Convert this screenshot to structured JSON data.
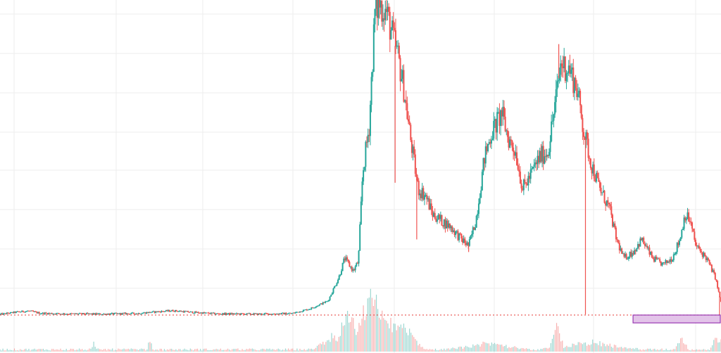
{
  "colors": {
    "background": "#ffffff",
    "grid": "#eeeeee",
    "up": "#26a69a",
    "down": "#ef5350",
    "price_line": "#e53935",
    "zone_fill": "#e1bee7",
    "zone_border": "#8e24aa"
  },
  "chart_data": {
    "type": "candlestick",
    "title": "",
    "xlabel": "",
    "ylabel": "",
    "grid": true,
    "legend": "none",
    "x_index_range": [
      0,
      1000
    ],
    "ylim": [
      0,
      100
    ],
    "volume_lim": [
      0,
      100
    ],
    "price_path": [
      [
        0,
        0.2
      ],
      [
        25,
        1.0
      ],
      [
        40,
        1.3
      ],
      [
        55,
        0.6
      ],
      [
        90,
        0.4
      ],
      [
        140,
        0.3
      ],
      [
        190,
        0.5
      ],
      [
        215,
        1.0
      ],
      [
        240,
        1.4
      ],
      [
        265,
        0.9
      ],
      [
        300,
        0.4
      ],
      [
        360,
        0.3
      ],
      [
        405,
        0.5
      ],
      [
        430,
        2.0
      ],
      [
        455,
        4.5
      ],
      [
        470,
        12.0
      ],
      [
        478,
        18.0
      ],
      [
        490,
        14.0
      ],
      [
        497,
        17.0
      ],
      [
        503,
        45.0
      ],
      [
        512,
        60.0
      ],
      [
        520,
        96.0
      ],
      [
        527,
        99.0
      ],
      [
        536,
        96.0
      ],
      [
        545,
        88.0
      ],
      [
        552,
        82.0
      ],
      [
        560,
        72.0
      ],
      [
        570,
        55.0
      ],
      [
        580,
        40.0
      ],
      [
        590,
        38.0
      ],
      [
        600,
        32.0
      ],
      [
        612,
        30.0
      ],
      [
        625,
        28.0
      ],
      [
        640,
        24.0
      ],
      [
        650,
        22.0
      ],
      [
        660,
        30.0
      ],
      [
        672,
        50.0
      ],
      [
        682,
        58.0
      ],
      [
        696,
        64.0
      ],
      [
        705,
        56.0
      ],
      [
        715,
        52.0
      ],
      [
        725,
        40.0
      ],
      [
        735,
        44.0
      ],
      [
        748,
        50.0
      ],
      [
        760,
        52.0
      ],
      [
        770,
        67.0
      ],
      [
        778,
        80.0
      ],
      [
        790,
        78.0
      ],
      [
        800,
        72.0
      ],
      [
        810,
        58.0
      ],
      [
        820,
        48.0
      ],
      [
        832,
        40.0
      ],
      [
        845,
        34.0
      ],
      [
        855,
        24.0
      ],
      [
        865,
        18.0
      ],
      [
        878,
        20.0
      ],
      [
        890,
        24.0
      ],
      [
        905,
        18.0
      ],
      [
        920,
        16.0
      ],
      [
        932,
        18.0
      ],
      [
        943,
        24.0
      ],
      [
        950,
        32.0
      ],
      [
        957,
        30.0
      ],
      [
        965,
        22.0
      ],
      [
        980,
        18.0
      ],
      [
        992,
        12.0
      ],
      [
        1000,
        4.0
      ],
      [
        1010,
        1.5
      ],
      [
        1024,
        0.8
      ]
    ],
    "spikes": [
      {
        "x": 548,
        "low": 42.0
      },
      {
        "x": 578,
        "low": 24.0
      },
      {
        "x": 650,
        "low": 20.0
      },
      {
        "x": 775,
        "high": 86.0
      },
      {
        "x": 812,
        "low": 0.2
      },
      {
        "x": 998,
        "low": 0.0
      }
    ],
    "volume_bumps": [
      {
        "center": 130,
        "width": 4,
        "height": 12
      },
      {
        "center": 208,
        "width": 4,
        "height": 22
      },
      {
        "center": 460,
        "width": 25,
        "height": 25
      },
      {
        "center": 480,
        "width": 12,
        "height": 45
      },
      {
        "center": 500,
        "width": 30,
        "height": 60
      },
      {
        "center": 519,
        "width": 20,
        "height": 70
      },
      {
        "center": 540,
        "width": 40,
        "height": 35
      },
      {
        "center": 560,
        "width": 30,
        "height": 30
      },
      {
        "center": 680,
        "width": 60,
        "height": 12
      },
      {
        "center": 772,
        "width": 10,
        "height": 40
      },
      {
        "center": 820,
        "width": 70,
        "height": 14
      },
      {
        "center": 945,
        "width": 10,
        "height": 25
      },
      {
        "center": 995,
        "width": 10,
        "height": 28
      }
    ],
    "price_line_level": 0.0,
    "zone": {
      "x_start": 878,
      "x_end": 1024,
      "low": -2.5,
      "high": 0.0
    }
  }
}
